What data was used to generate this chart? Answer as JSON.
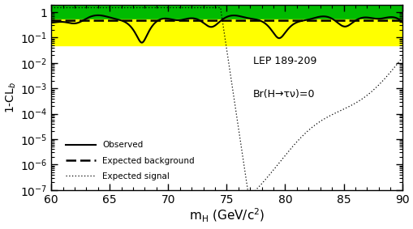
{
  "xlim": [
    60,
    90
  ],
  "ylim": [
    1e-07,
    2.0
  ],
  "xlabel": "m$_{\\rm H}$ (GeV/c$^{2}$)",
  "ylabel": "1-CL$_{b}$",
  "green_band_lo": 0.5,
  "green_band_hi": 2.0,
  "yellow_band_lo": 0.05,
  "yellow_band_hi": 0.5,
  "annotation1": "LEP 189-209",
  "annotation2": "Br(H→τν)=0",
  "legend_observed": "Observed",
  "legend_expected_bg": "Expected background",
  "legend_expected_sig": "Expected signal",
  "bg_color": "#ffffff",
  "green_color": "#00bb00",
  "yellow_color": "#ffff00",
  "ytick_positions": [
    1e-07,
    1e-06,
    1e-05,
    0.0001,
    0.001,
    0.01,
    0.1,
    1
  ],
  "ytick_labels": [
    "10$^{-7}$",
    "10$^{-6}$",
    "10$^{-5}$",
    "10$^{-4}$",
    "10$^{-3}$",
    "10$^{-2}$",
    "10$^{-1}$",
    "1"
  ],
  "ytick_exponents": [
    "-7",
    "-6",
    "-5",
    "-4",
    "-3",
    "-2",
    "-1",
    "1"
  ],
  "figsize": [
    5.1,
    2.83
  ],
  "dpi": 100
}
